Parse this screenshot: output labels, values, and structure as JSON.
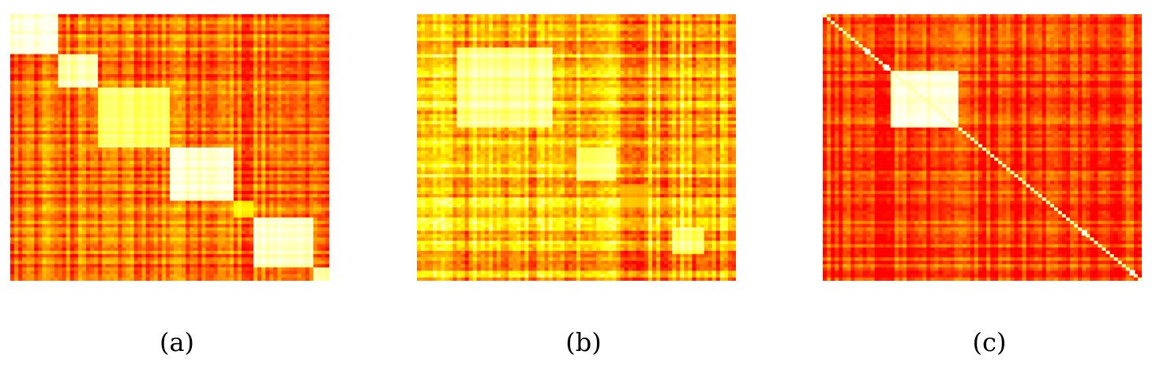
{
  "chart_data": [
    {
      "type": "heatmap",
      "caption": "(a)",
      "colormap": [
        "#ff0000",
        "#ff8c00",
        "#ffff00",
        "#fffff0"
      ],
      "blocks": [
        [
          0,
          0.15
        ],
        [
          0.15,
          0.28
        ],
        [
          0.28,
          0.5
        ],
        [
          0.5,
          0.7
        ],
        [
          0.7,
          0.76
        ],
        [
          0.76,
          0.95
        ],
        [
          0.95,
          1.0
        ]
      ],
      "block_values": [
        0.98,
        0.92,
        0.8,
        0.95,
        0.65,
        0.93,
        0.9
      ],
      "off_diagonal_value": 0.25,
      "noise": 0.35
    },
    {
      "type": "heatmap",
      "caption": "(b)",
      "colormap": [
        "#ff0000",
        "#ff8c00",
        "#ffff00",
        "#fffff0"
      ],
      "blocks": [
        [
          0.12,
          0.42
        ],
        [
          0.5,
          0.62
        ],
        [
          0.64,
          0.72
        ],
        [
          0.8,
          0.9
        ]
      ],
      "block_values": [
        0.85,
        0.8,
        0.5,
        0.82
      ],
      "off_diagonal_value": 0.45,
      "noise": 0.45
    },
    {
      "type": "heatmap",
      "caption": "(c)",
      "colormap": [
        "#ff0000",
        "#ff8c00",
        "#ffff00",
        "#fffff0"
      ],
      "blocks": [
        [
          0.21,
          0.42
        ]
      ],
      "block_values": [
        0.97
      ],
      "off_diagonal_value": 0.15,
      "noise": 0.3,
      "diagonal": true,
      "diagonal_highlights": [
        0.14,
        0.2,
        0.82,
        0.97
      ]
    }
  ]
}
